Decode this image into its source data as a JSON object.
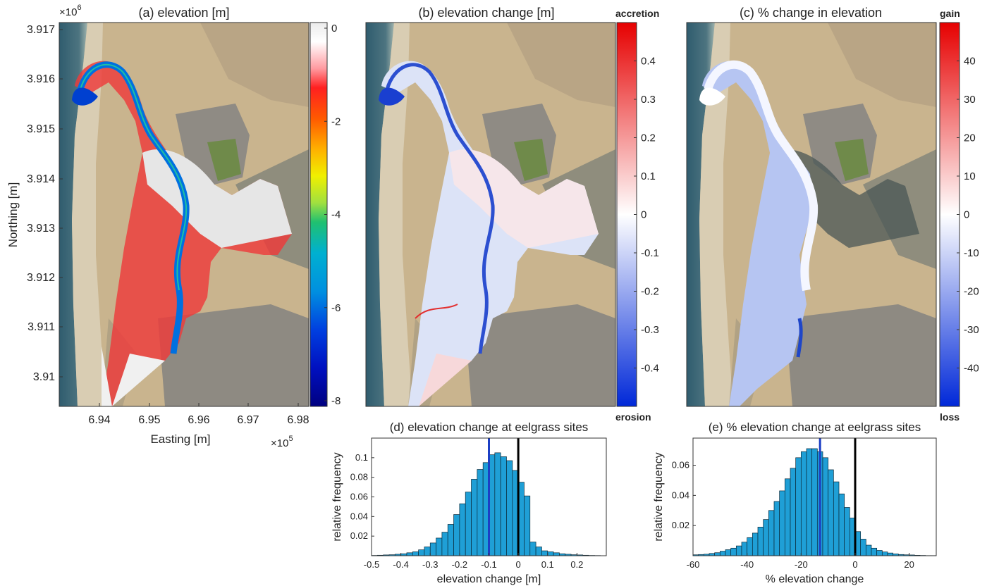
{
  "panels": {
    "a": {
      "title": "(a) elevation [m]",
      "xlabel": "Easting [m]",
      "ylabel": "Northing [m]",
      "x_exponent_base": "×10",
      "x_exponent": "5",
      "y_exponent_base": "×10",
      "y_exponent": "6",
      "xticks": [
        "6.94",
        "6.95",
        "6.96",
        "6.97",
        "6.98"
      ],
      "yticks": [
        "3.917",
        "3.916",
        "3.915",
        "3.914",
        "3.913",
        "3.912",
        "3.911",
        "3.91"
      ],
      "colorbar_ticks": [
        "0",
        "-2",
        "-4",
        "-6",
        "-8"
      ]
    },
    "b": {
      "title": "(b) elevation change [m]",
      "colorbar_top": "accretion",
      "colorbar_bottom": "erosion",
      "colorbar_ticks": [
        "0.4",
        "0.3",
        "0.2",
        "0.1",
        "0",
        "-0.1",
        "-0.2",
        "-0.3",
        "-0.4"
      ]
    },
    "c": {
      "title": "(c) % change in elevation",
      "colorbar_top": "gain",
      "colorbar_bottom": "loss",
      "colorbar_ticks": [
        "40",
        "30",
        "20",
        "10",
        "0",
        "-10",
        "-20",
        "-30",
        "-40"
      ]
    }
  },
  "colors": {
    "bar_fill": "#1f9fd6",
    "bar_edge": "#0b2a3a",
    "median_line": "#1c3fc4",
    "zero_line": "#000000",
    "water": "#5e6e70",
    "land": "#c9b48e",
    "town": "#8e8a82"
  },
  "chart_data": [
    {
      "type": "bar",
      "title": "(d) elevation change at eelgrass sites",
      "xlabel": "elevation change [m]",
      "ylabel": "relative frequency",
      "xlim": [
        -0.5,
        0.3
      ],
      "ylim": [
        0,
        0.12
      ],
      "xticks": [
        -0.5,
        -0.4,
        -0.3,
        -0.2,
        -0.1,
        0,
        0.1,
        0.2
      ],
      "xtick_labels": [
        "-0.5",
        "-0.4",
        "-0.3",
        "-0.2",
        "-0.1",
        "0",
        "0.1",
        "0.2"
      ],
      "yticks": [
        0.02,
        0.04,
        0.06,
        0.08,
        0.1
      ],
      "ytick_labels": [
        "0.02",
        "0.04",
        "0.06",
        "0.08",
        "0.1"
      ],
      "bin_start": -0.5,
      "bin_width": 0.02,
      "values": [
        0.0003,
        0.0005,
        0.0008,
        0.001,
        0.0015,
        0.002,
        0.003,
        0.004,
        0.006,
        0.009,
        0.013,
        0.018,
        0.024,
        0.032,
        0.042,
        0.053,
        0.065,
        0.078,
        0.088,
        0.095,
        0.103,
        0.105,
        0.101,
        0.097,
        0.087,
        0.075,
        0.061,
        0.014,
        0.009,
        0.005,
        0.004,
        0.003,
        0.002,
        0.0015,
        0.001,
        0.0008,
        0.0005,
        0.0003,
        0.0002,
        0.0001
      ],
      "vlines": [
        -0.1,
        0
      ]
    },
    {
      "type": "bar",
      "title": "(e) % elevation change at eelgrass sites",
      "xlabel": "% elevation change",
      "ylabel": "relative frequency",
      "xlim": [
        -60,
        30
      ],
      "ylim": [
        0,
        0.078
      ],
      "xticks": [
        -60,
        -40,
        -20,
        0,
        20
      ],
      "xtick_labels": [
        "-60",
        "-40",
        "-20",
        "0",
        "20"
      ],
      "yticks": [
        0.02,
        0.04,
        0.06
      ],
      "ytick_labels": [
        "0.02",
        "0.04",
        "0.06"
      ],
      "bin_start": -60,
      "bin_width": 2,
      "values": [
        0.0006,
        0.0008,
        0.001,
        0.0015,
        0.002,
        0.003,
        0.004,
        0.005,
        0.0065,
        0.009,
        0.012,
        0.015,
        0.019,
        0.024,
        0.03,
        0.036,
        0.043,
        0.051,
        0.058,
        0.065,
        0.069,
        0.071,
        0.071,
        0.069,
        0.065,
        0.057,
        0.049,
        0.041,
        0.032,
        0.025,
        0.016,
        0.011,
        0.007,
        0.005,
        0.0035,
        0.0025,
        0.0018,
        0.0012,
        0.0008,
        0.0006,
        0.0005,
        0.0003,
        0.0002,
        0.0001,
        0.0001
      ],
      "vlines": [
        -13,
        0
      ]
    }
  ]
}
